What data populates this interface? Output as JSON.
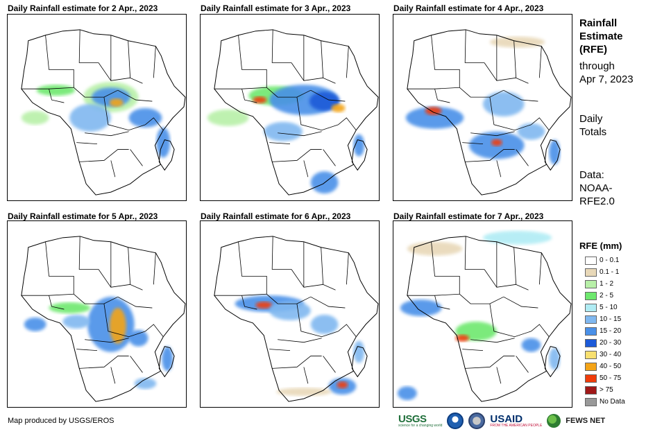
{
  "panels": [
    {
      "title": "Daily Rainfall estimate for 2 Apr., 2023"
    },
    {
      "title": "Daily Rainfall estimate for 3 Apr., 2023"
    },
    {
      "title": "Daily Rainfall estimate for 4 Apr., 2023"
    },
    {
      "title": "Daily Rainfall estimate for 5 Apr., 2023"
    },
    {
      "title": "Daily Rainfall estimate for 6 Apr., 2023"
    },
    {
      "title": "Daily Rainfall estimate for 7 Apr., 2023"
    }
  ],
  "sidebar": {
    "title_line1": "Rainfall",
    "title_line2": "Estimate",
    "title_line3": "(RFE)",
    "through_label": "through",
    "through_date": "Apr 7, 2023",
    "daily_line1": "Daily",
    "daily_line2": "Totals",
    "data_line1": "Data:",
    "data_line2": "NOAA-",
    "data_line3": "RFE2.0"
  },
  "legend": {
    "title": "RFE (mm)",
    "items": [
      {
        "label": "0 - 0.1",
        "color": "#ffffff"
      },
      {
        "label": "0.1 - 1",
        "color": "#e8d8b8"
      },
      {
        "label": "1 - 2",
        "color": "#b8f0a8"
      },
      {
        "label": "2 - 5",
        "color": "#6ee86e"
      },
      {
        "label": "5 - 10",
        "color": "#b0ecf4"
      },
      {
        "label": "10 - 15",
        "color": "#80b8f0"
      },
      {
        "label": "15 - 20",
        "color": "#4a90e8"
      },
      {
        "label": "20 - 30",
        "color": "#1c5ad8"
      },
      {
        "label": "30 - 40",
        "color": "#f8e070"
      },
      {
        "label": "40 - 50",
        "color": "#f4a418"
      },
      {
        "label": "50 - 75",
        "color": "#f03c0a"
      },
      {
        "label": "> 75",
        "color": "#a01818"
      },
      {
        "label": "No Data",
        "color": "#999999"
      }
    ]
  },
  "footer": {
    "credit": "Map produced by USGS/EROS",
    "logos": {
      "usgs": "USGS",
      "usgs_tagline": "science for a changing world",
      "usaid": "USAID",
      "usaid_tagline": "FROM THE AMERICAN PEOPLE",
      "fews": "FEWS NET"
    }
  }
}
